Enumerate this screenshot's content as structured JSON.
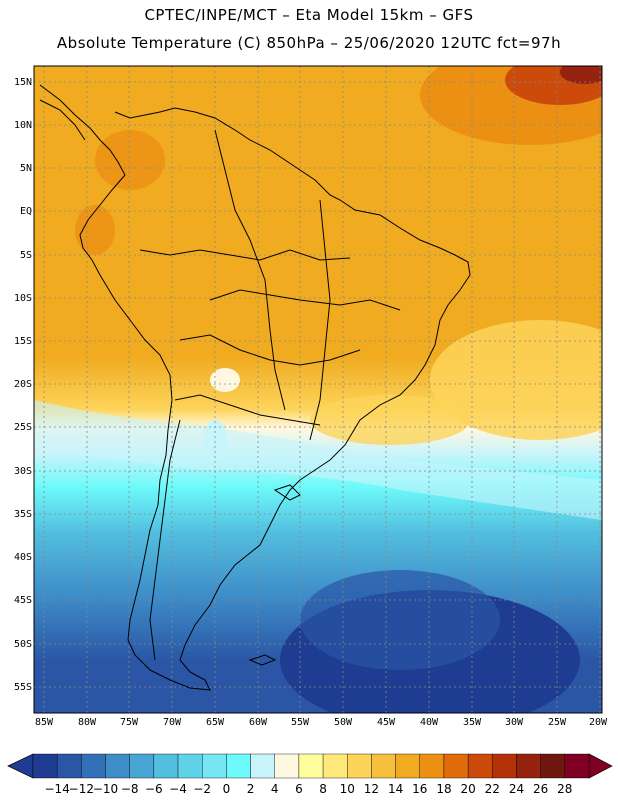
{
  "title_line1": "CPTEC/INPE/MCT –  Eta Model 15km – GFS",
  "title_line2": "Absolute Temperature (C) 850hPa – 25/06/2020 12UTC fct=97h",
  "lat_labels": [
    "15N",
    "10N",
    "5N",
    "EQ",
    "5S",
    "10S",
    "15S",
    "20S",
    "25S",
    "30S",
    "35S",
    "40S",
    "45S",
    "50S",
    "55S"
  ],
  "lon_labels": [
    "85W",
    "80W",
    "75W",
    "70W",
    "65W",
    "60W",
    "55W",
    "50W",
    "45W",
    "40W",
    "35W",
    "30W",
    "25W",
    "20W"
  ],
  "colorbar": {
    "labels": [
      "−14",
      "−12",
      "−10",
      "−8",
      "−6",
      "−4",
      "−2",
      "0",
      "2",
      "4",
      "6",
      "8",
      "10",
      "12",
      "14",
      "16",
      "18",
      "20",
      "22",
      "24",
      "26",
      "28"
    ],
    "colors": [
      "#1f3c93",
      "#2a56a5",
      "#3270b8",
      "#3e8cc8",
      "#49a5d3",
      "#53bfdf",
      "#5fd3e8",
      "#75e6f2",
      "#6efafa",
      "#c8f4fb",
      "#fff8e0",
      "#fffe9c",
      "#ffe97a",
      "#fdd45a",
      "#f6bf3e",
      "#f0ab20",
      "#ec9014",
      "#e06c0c",
      "#cc4a0a",
      "#b43208",
      "#962210",
      "#6e1810",
      "#800024"
    ]
  },
  "map_colors": {
    "ocean_cold_deep": "#1f3c93",
    "cold_blue": "#2a56a5",
    "cyan": "#49c8e0",
    "light_cyan": "#c8f4fb",
    "pale": "#fff8e0",
    "yellow": "#ffe97a",
    "light_orange": "#f6bf3e",
    "orange": "#f0ab20",
    "dark_orange": "#e06c0c",
    "red": "#b43208"
  }
}
